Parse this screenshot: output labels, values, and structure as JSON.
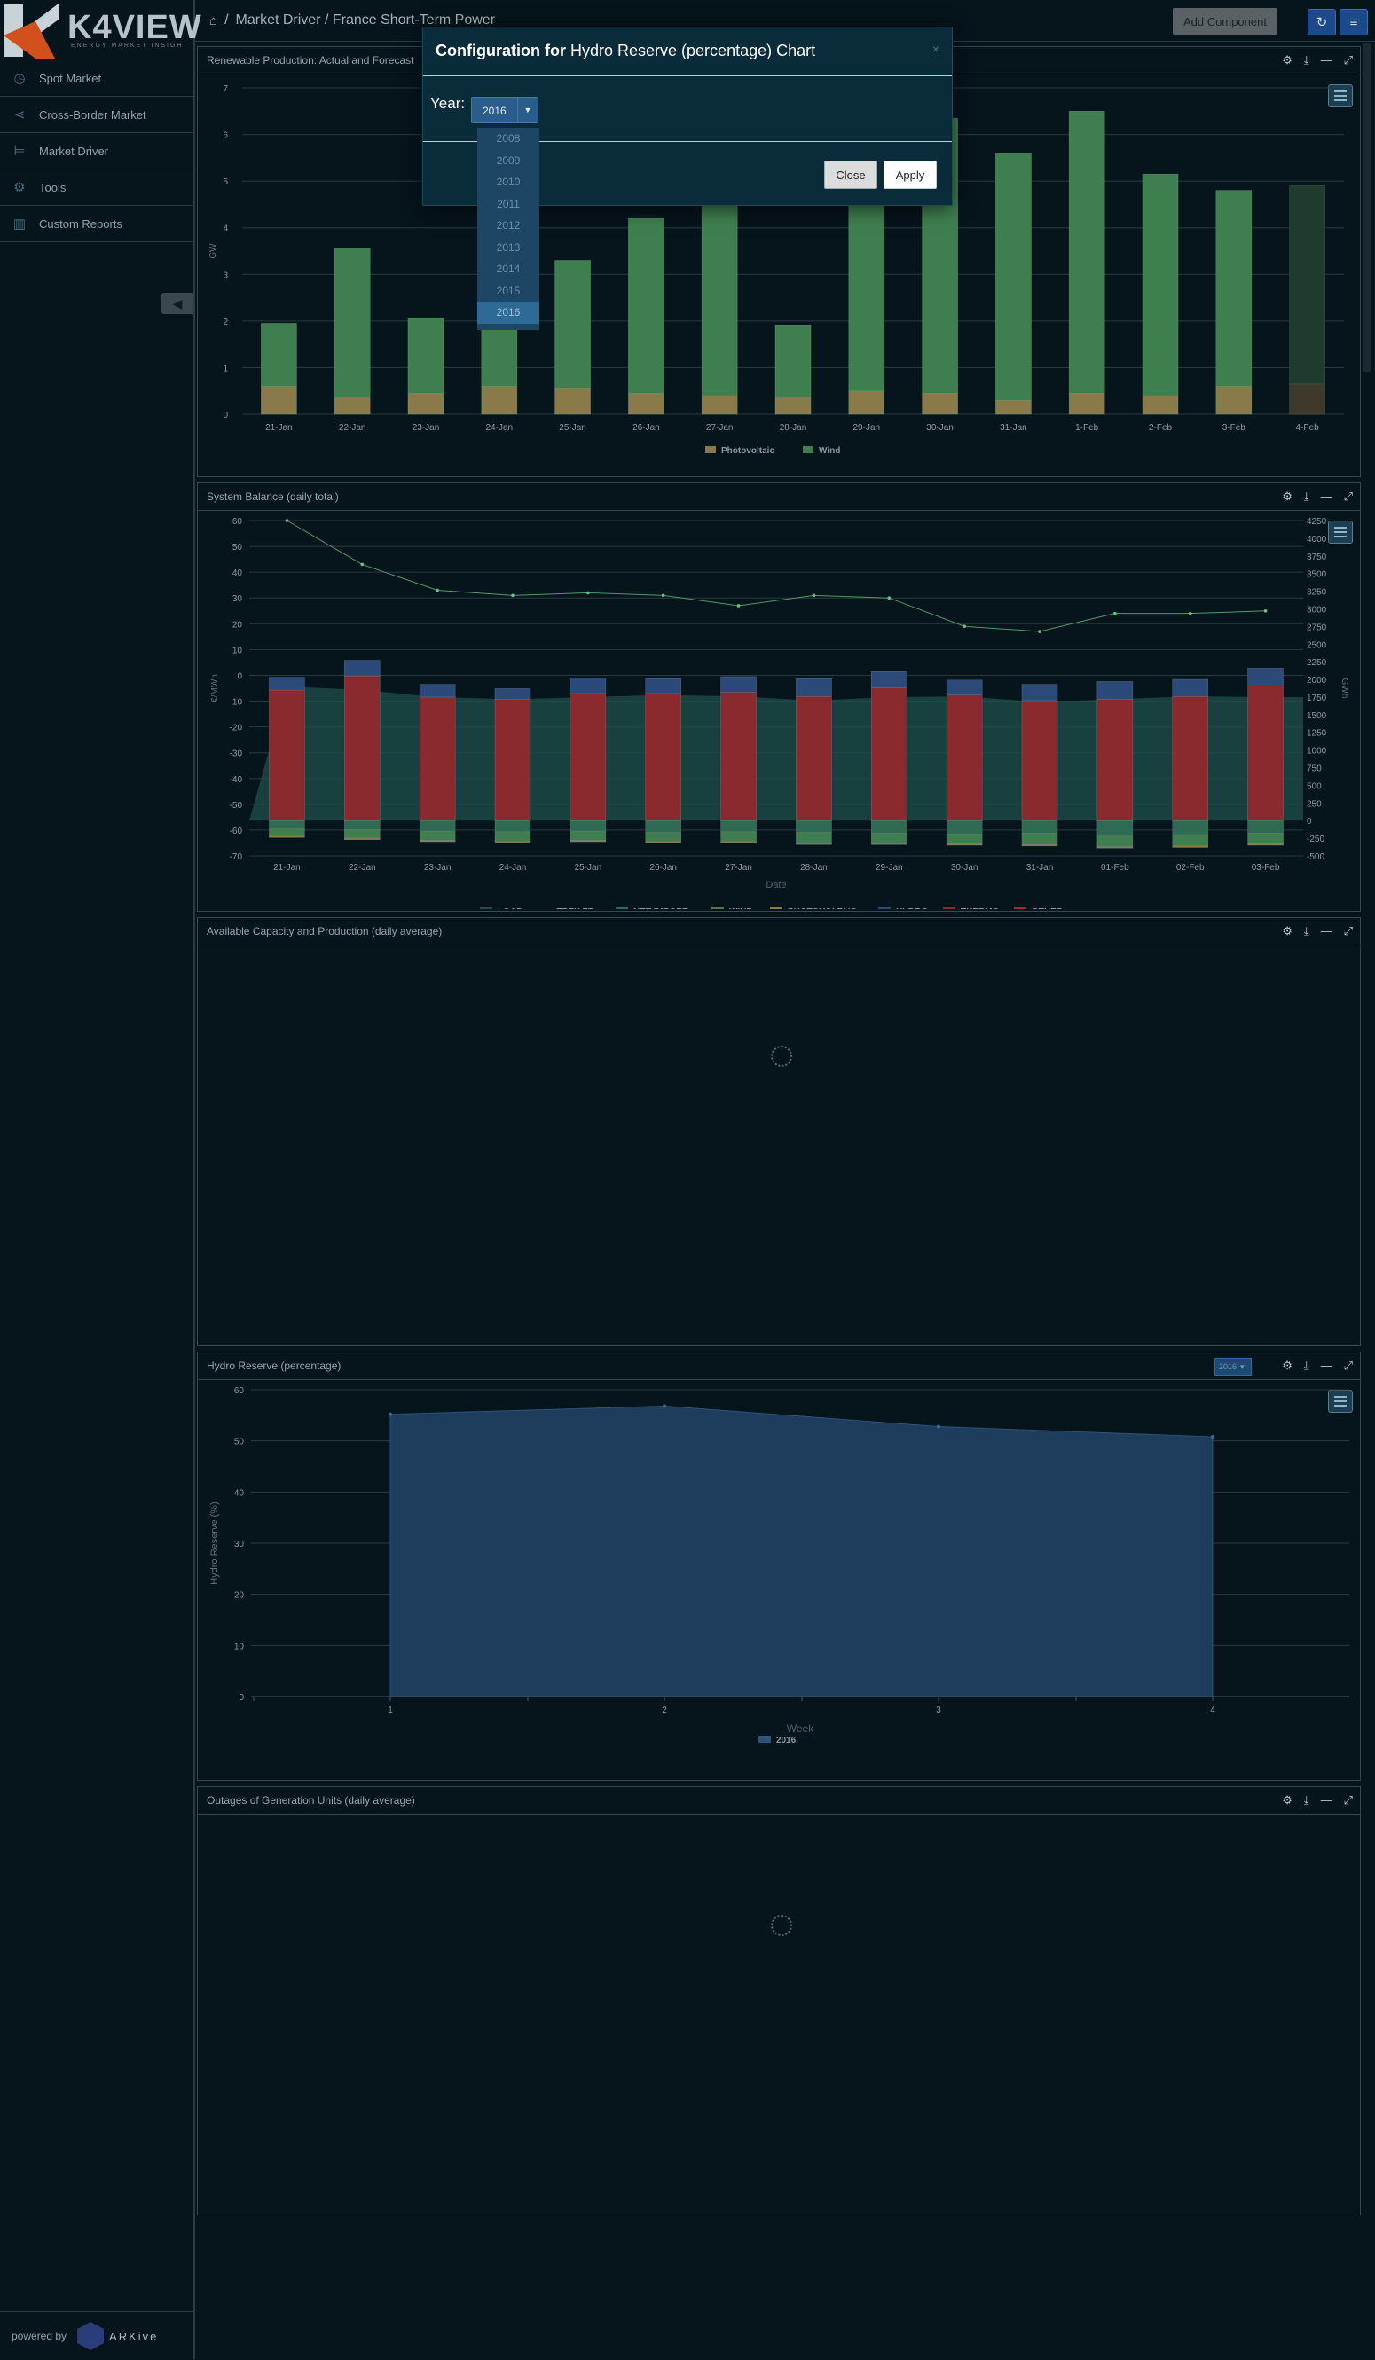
{
  "app": {
    "logo": "K4VIEW",
    "logo_tagline": "ENERGY MARKET INSIGHT"
  },
  "sidebar": {
    "items": [
      {
        "label": "Spot Market",
        "icon": "clock-icon"
      },
      {
        "label": "Cross-Border Market",
        "icon": "share-icon"
      },
      {
        "label": "Market Driver",
        "icon": "signpost-icon"
      },
      {
        "label": "Tools",
        "icon": "gear-icon"
      },
      {
        "label": "Custom Reports",
        "icon": "bar-chart-icon"
      }
    ],
    "footer": {
      "powered_by": "powered by",
      "brand": "ARKive"
    }
  },
  "header": {
    "breadcrumb": [
      "Market Driver / France Short-Term Power"
    ],
    "add_component": "Add Component"
  },
  "panels": {
    "renewable": {
      "title": "Renewable Production: Actual and Forecast"
    },
    "balance": {
      "title": "System Balance (daily total)"
    },
    "capacity": {
      "title": "Available Capacity and Production (daily average)"
    },
    "hydro": {
      "title": "Hydro Reserve (percentage)",
      "year_select": "2016"
    },
    "outages": {
      "title": "Outages of Generation Units (daily average)"
    }
  },
  "modal": {
    "title_bold": "Configuration for",
    "title_rest": "Hydro Reserve (percentage) Chart",
    "year_label": "Year:",
    "selected_year": "2016",
    "options": [
      "2008",
      "2009",
      "2010",
      "2011",
      "2012",
      "2013",
      "2014",
      "2015",
      "2016"
    ],
    "close": "Close",
    "apply": "Apply"
  },
  "chart_data": [
    {
      "type": "bar",
      "stacked": true,
      "categories": [
        "21-Jan",
        "22-Jan",
        "23-Jan",
        "24-Jan",
        "25-Jan",
        "26-Jan",
        "27-Jan",
        "28-Jan",
        "29-Jan",
        "30-Jan",
        "31-Jan",
        "1-Feb",
        "2-Feb",
        "3-Feb",
        "4-Feb"
      ],
      "ylabel": "GW",
      "ylim": [
        0,
        7
      ],
      "yticks": [
        "0",
        "1",
        "2",
        "3",
        "4",
        "5",
        "6",
        "7"
      ],
      "series": [
        {
          "name": "Photovoltaic",
          "values": [
            0.6,
            0.35,
            0.45,
            0.6,
            0.55,
            0.45,
            0.4,
            0.35,
            0.5,
            0.45,
            0.3,
            0.45,
            0.4,
            0.6,
            0.65
          ]
        },
        {
          "name": "Wind",
          "values": [
            1.35,
            3.2,
            1.6,
            2.0,
            2.75,
            3.75,
            4.2,
            1.55,
            4.5,
            5.9,
            5.3,
            6.05,
            4.75,
            4.2,
            4.25
          ]
        }
      ],
      "colors": {
        "Photovoltaic": "#8a7a4a",
        "Wind": "#3f7f4f"
      },
      "legend": "bottom"
    },
    {
      "type": "bar",
      "stacked": true,
      "categories": [
        "21-Jan",
        "22-Jan",
        "23-Jan",
        "24-Jan",
        "25-Jan",
        "26-Jan",
        "27-Jan",
        "28-Jan",
        "29-Jan",
        "30-Jan",
        "31-Jan",
        "01-Feb",
        "02-Feb",
        "03-Feb"
      ],
      "xlabel": "Date",
      "ylabel": "€/MWh",
      "y2label": "GWh",
      "ylim": [
        -70,
        60
      ],
      "yticks": [
        "60",
        "50",
        "40",
        "30",
        "20",
        "10",
        "0",
        "-10",
        "-20",
        "-30",
        "-40",
        "-50",
        "-60",
        "-70"
      ],
      "y2lim": [
        -500,
        4250
      ],
      "y2ticks": [
        "4250",
        "4000",
        "3750",
        "3500",
        "3250",
        "3000",
        "2750",
        "2500",
        "2250",
        "2000",
        "1750",
        "1500",
        "1250",
        "1000",
        "750",
        "500",
        "250",
        "0",
        "-250",
        "-500"
      ],
      "load_gwh": [
        1900,
        1850,
        1750,
        1720,
        1750,
        1780,
        1760,
        1700,
        1750,
        1760,
        1680,
        1720,
        1760,
        1750
      ],
      "epex_fr": [
        60,
        43,
        33,
        31,
        32,
        31,
        27,
        31,
        30,
        19,
        17,
        24,
        24,
        25
      ],
      "series": [
        {
          "name": "THERMO",
          "values": [
            1850,
            2050,
            1750,
            1720,
            1800,
            1800,
            1820,
            1760,
            1880,
            1780,
            1700,
            1720,
            1760,
            1910
          ]
        },
        {
          "name": "HYDRO",
          "values": [
            180,
            220,
            180,
            150,
            220,
            210,
            220,
            250,
            230,
            210,
            230,
            250,
            240,
            250
          ]
        },
        {
          "name": "NET IMPORT",
          "values": [
            -120,
            -130,
            -150,
            -160,
            -150,
            -170,
            -160,
            -170,
            -180,
            -190,
            -180,
            -220,
            -200,
            -180
          ]
        },
        {
          "name": "WIND",
          "values": [
            -100,
            -120,
            -130,
            -140,
            -130,
            -130,
            -140,
            -150,
            -140,
            -140,
            -160,
            -150,
            -160,
            -150
          ]
        },
        {
          "name": "PHOTOVOLTAIC",
          "values": [
            -20,
            -20,
            -20,
            -20,
            -20,
            -20,
            -20,
            -20,
            -20,
            -20,
            -20,
            -20,
            -20,
            -20
          ]
        }
      ],
      "legend": [
        "LOAD",
        "EPEX FR",
        "NET IMPORT",
        "WIND",
        "PHOTOVOLTAIC",
        "HYDRO",
        "THERMO",
        "OTHER"
      ],
      "colors": {
        "LOAD": "#1d4f4c",
        "EPEX FR": "#5aa56e",
        "NET IMPORT": "#2e6b52",
        "WIND": "#3f7f4f",
        "PHOTOVOLTAIC": "#8a7a4a",
        "HYDRO": "#2b4a7a",
        "THERMO": "#8a2a2f",
        "OTHER": "#a3302e"
      }
    },
    {
      "type": "area",
      "x": [
        "1",
        "2",
        "3",
        "4"
      ],
      "xlabel": "Week",
      "ylabel": "Hydro Reserve (%)",
      "ylim": [
        0,
        60
      ],
      "yticks": [
        "0",
        "10",
        "20",
        "30",
        "40",
        "50",
        "60"
      ],
      "series": [
        {
          "name": "2016",
          "values": [
            55.2,
            56.8,
            52.8,
            50.8
          ]
        }
      ],
      "colors": {
        "2016": "#1e3d5c"
      },
      "legend": "bottom"
    }
  ]
}
